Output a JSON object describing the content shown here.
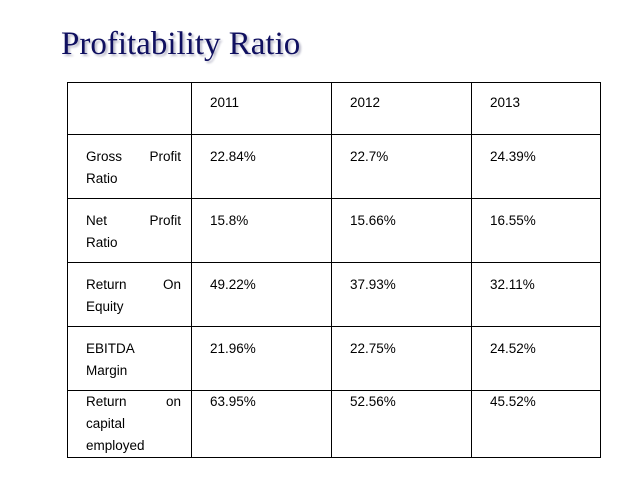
{
  "title": "Profitability Ratio",
  "table": {
    "years": [
      "2011",
      "2012",
      "2013"
    ],
    "rows": [
      {
        "label_lines": [
          "Gross Profit",
          "Ratio"
        ],
        "values": [
          "22.84%",
          "22.7%",
          "24.39%"
        ]
      },
      {
        "label_lines": [
          "Net Profit",
          "Ratio"
        ],
        "values": [
          "15.8%",
          "15.66%",
          "16.55%"
        ]
      },
      {
        "label_lines": [
          "Return On",
          "Equity"
        ],
        "values": [
          "49.22%",
          "37.93%",
          "32.11%"
        ]
      },
      {
        "label_lines": [
          "EBITDA",
          "Margin"
        ],
        "values": [
          "21.96%",
          "22.75%",
          "24.52%"
        ]
      },
      {
        "label_lines": [
          "Return on",
          "capital",
          "employed"
        ],
        "values": [
          "63.95%",
          "52.56%",
          "45.52%"
        ]
      }
    ]
  }
}
